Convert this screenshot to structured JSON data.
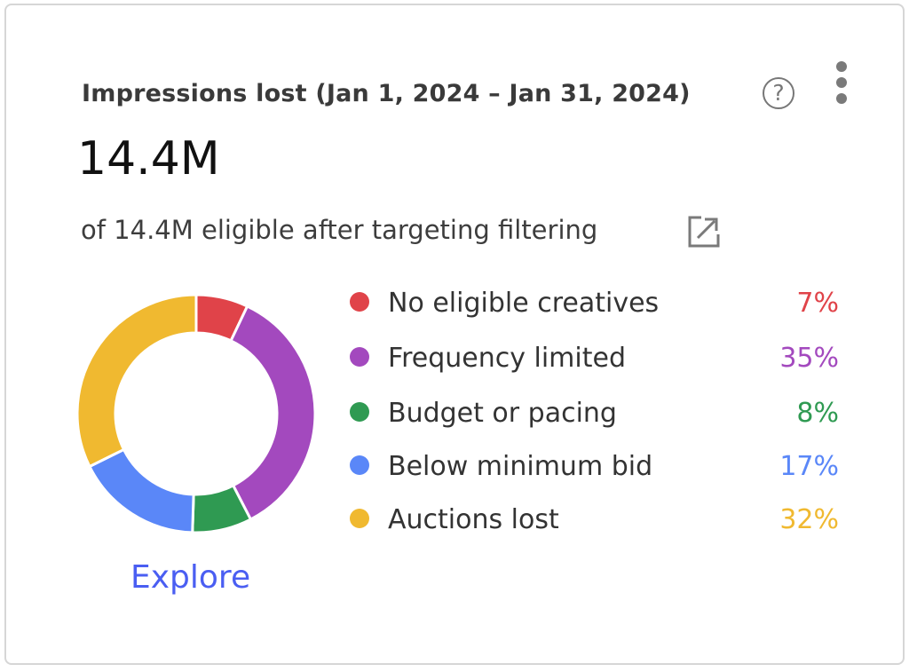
{
  "card": {
    "title": "Impressions lost (Jan 1, 2024 – Jan 31, 2024)",
    "help_icon_glyph": "?",
    "total": "14.4M",
    "subtitle": "of 14.4M eligible after targeting filtering",
    "explore_label": "Explore"
  },
  "icons": {
    "help": "help-circle-icon",
    "menu": "more-vert-icon",
    "open": "open-in-new-icon"
  },
  "chart_data": {
    "type": "pie",
    "variant": "donut",
    "title": "Impressions lost (Jan 1, 2024 – Jan 31, 2024)",
    "legend_position": "right",
    "categories": [
      "No eligible creatives",
      "Frequency limited",
      "Budget or pacing",
      "Below minimum bid",
      "Auctions lost"
    ],
    "values": [
      7,
      35,
      8,
      17,
      32
    ],
    "labels": [
      "7%",
      "35%",
      "8%",
      "17%",
      "32%"
    ],
    "colors": [
      "#e04349",
      "#a349be",
      "#2f9a52",
      "#5a87f8",
      "#f0b930"
    ]
  }
}
